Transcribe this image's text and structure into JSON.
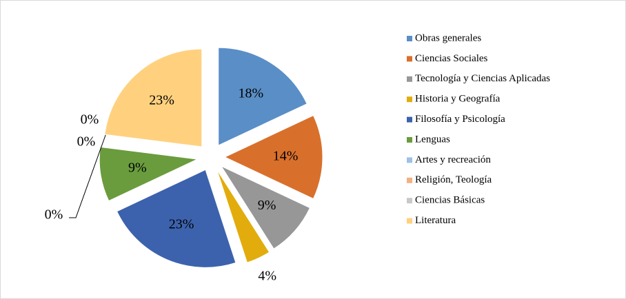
{
  "chart_data": {
    "type": "pie",
    "categories": [
      "Obras generales",
      "Ciencias Sociales",
      "Tecnología y Ciencias Aplicadas",
      "Historia y Geografía",
      "Filosofía y Psicología",
      "Lenguas",
      "Artes y recreación",
      "Religión, Teología",
      "Ciencias Básicas",
      "Literatura"
    ],
    "values": [
      18,
      14,
      9,
      4,
      23,
      9,
      0,
      0,
      0,
      23
    ],
    "value_labels": [
      "18%",
      "14%",
      "9%",
      "4%",
      "23%",
      "9%",
      "0%",
      "0%",
      "0%",
      "23%"
    ],
    "colors": [
      "#5a8ec6",
      "#d8702c",
      "#979797",
      "#e2ac0c",
      "#3c62ad",
      "#6a9c3d",
      "#9cc2e5",
      "#f3b083",
      "#c8c8c8",
      "#ffd17f"
    ],
    "legend": "right"
  }
}
